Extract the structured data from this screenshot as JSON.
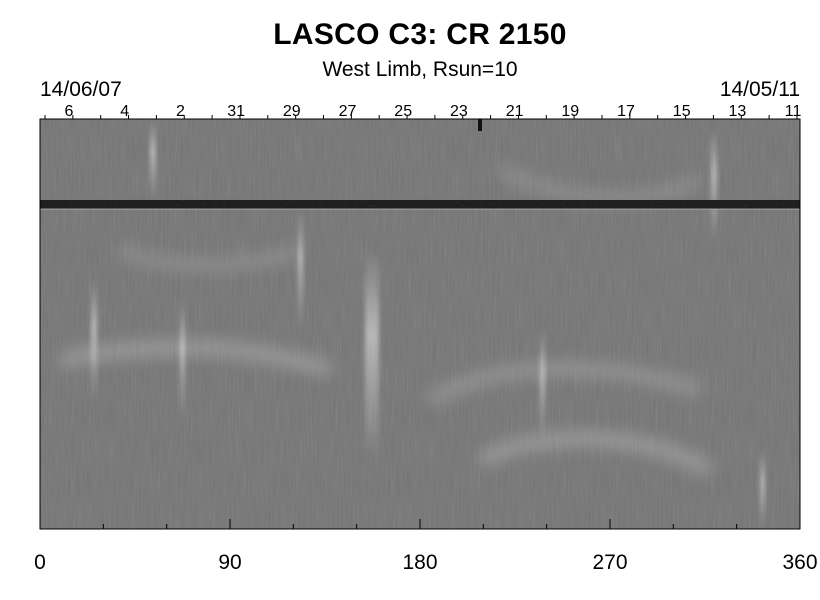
{
  "header": {
    "title": "LASCO C3: CR 2150",
    "subtitle": "West Limb, Rsun=10",
    "date_left": "14/06/07",
    "date_right": "14/05/11"
  },
  "top_axis": {
    "labels": [
      "6",
      "4",
      "2",
      "31",
      "29",
      "27",
      "25",
      "23",
      "21",
      "19",
      "17",
      "15",
      "13",
      "11"
    ]
  },
  "bottom_axis": {
    "labels": [
      "0",
      "90",
      "180",
      "270",
      "360"
    ],
    "values": [
      0,
      90,
      180,
      270,
      360
    ],
    "range": [
      0,
      360
    ]
  },
  "image": {
    "description_colors": {
      "background": "#727272",
      "dark_band": "#1a1a1a",
      "bright_streak": "#d0d0d0"
    }
  }
}
